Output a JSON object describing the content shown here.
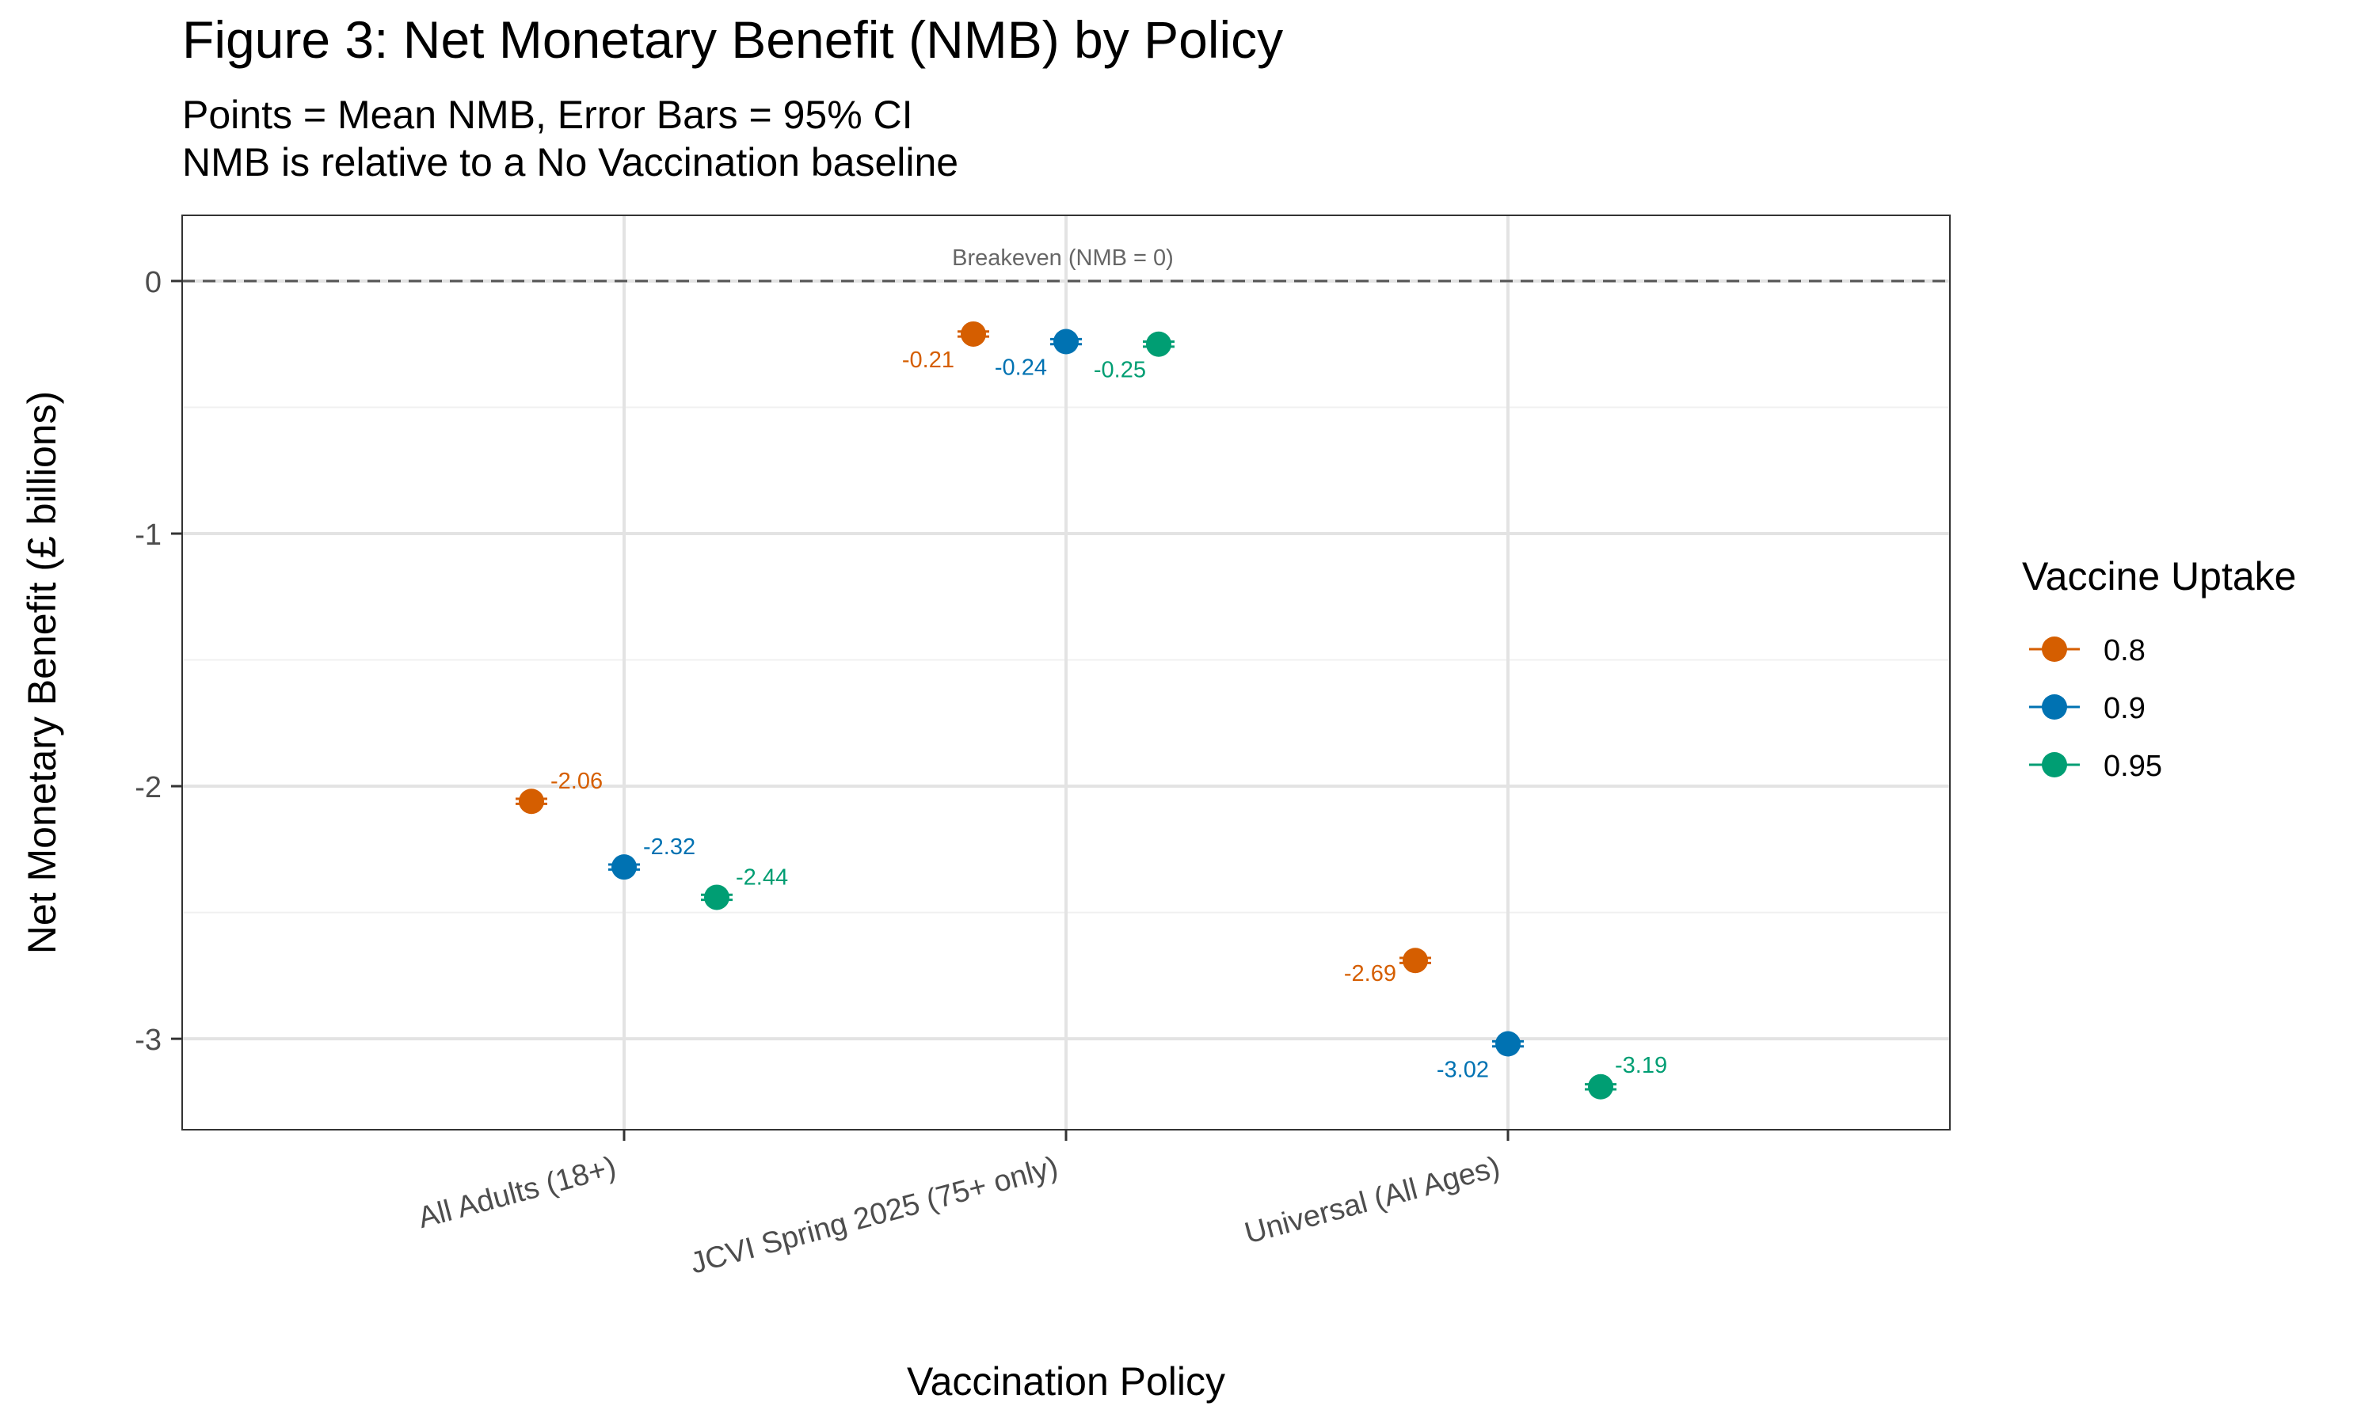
{
  "chart_data": {
    "type": "scatter",
    "title": "Figure 3: Net Monetary Benefit (NMB) by Policy",
    "subtitle_lines": [
      "Points = Mean NMB, Error Bars = 95% CI",
      "NMB is relative to a No Vaccination baseline"
    ],
    "xlabel": "Vaccination Policy",
    "ylabel": "Net Monetary Benefit (£ billions)",
    "categories": [
      "All Adults (18+)",
      "JCVI Spring 2025 (75+ only)",
      "Universal (All Ages)"
    ],
    "ylim": [
      -3.36,
      0.26
    ],
    "y_ticks": [
      0,
      -1,
      -2,
      -3
    ],
    "y_tick_labels": [
      "0",
      "-1",
      "-2",
      "-3"
    ],
    "reference_line": {
      "y": 0,
      "label": "Breakeven (NMB = 0)"
    },
    "legend": {
      "title": "Vaccine Uptake",
      "position": "right"
    },
    "grid": true,
    "series": [
      {
        "name": "0.8",
        "color": "#D55E00",
        "values": [
          -2.06,
          -0.21,
          -2.69
        ],
        "ci_low": [
          -2.07,
          -0.22,
          -2.7
        ],
        "ci_high": [
          -2.05,
          -0.2,
          -2.68
        ],
        "labels": [
          "-2.06",
          "-0.21",
          "-2.69"
        ]
      },
      {
        "name": "0.9",
        "color": "#0072B2",
        "values": [
          -2.32,
          -0.24,
          -3.02
        ],
        "ci_low": [
          -2.33,
          -0.25,
          -3.03
        ],
        "ci_high": [
          -2.31,
          -0.23,
          -3.01
        ],
        "labels": [
          "-2.32",
          "-0.24",
          "-3.02"
        ]
      },
      {
        "name": "0.95",
        "color": "#009E73",
        "values": [
          -2.44,
          -0.25,
          -3.19
        ],
        "ci_low": [
          -2.45,
          -0.26,
          -3.2
        ],
        "ci_high": [
          -2.43,
          -0.24,
          -3.18
        ],
        "labels": [
          "-2.44",
          "-0.25",
          "-3.19"
        ]
      }
    ]
  }
}
